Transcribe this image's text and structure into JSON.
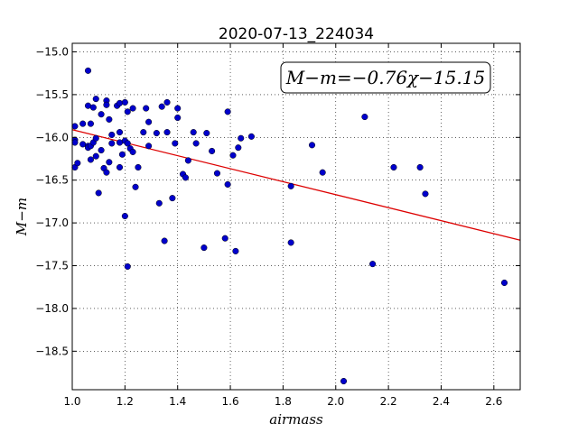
{
  "chart_data": {
    "type": "scatter",
    "title": "2020-07-13_224034",
    "xlabel": "airmass",
    "ylabel": "M−m",
    "xlim": [
      1.0,
      2.7
    ],
    "ylim": [
      -18.95,
      -14.9
    ],
    "y_inverted": true,
    "grid": true,
    "xticks": [
      "1.0",
      "1.2",
      "1.4",
      "1.6",
      "1.8",
      "2.0",
      "2.2",
      "2.4",
      "2.6"
    ],
    "yticks": [
      "−15.0",
      "−15.5",
      "−16.0",
      "−16.5",
      "−17.0",
      "−17.5",
      "−18.0",
      "−18.5"
    ],
    "point_color": "#0000cc",
    "fit_color": "#dd0000",
    "fit": {
      "slope": -0.76,
      "intercept": -15.15
    },
    "annotation": "M−m=−0.76χ−15.15",
    "points": [
      [
        1.01,
        -15.87
      ],
      [
        1.01,
        -16.03
      ],
      [
        1.01,
        -16.06
      ],
      [
        1.01,
        -16.35
      ],
      [
        1.02,
        -16.3
      ],
      [
        1.04,
        -15.84
      ],
      [
        1.04,
        -16.08
      ],
      [
        1.06,
        -15.22
      ],
      [
        1.06,
        -16.1
      ],
      [
        1.06,
        -16.12
      ],
      [
        1.06,
        -15.63
      ],
      [
        1.07,
        -15.84
      ],
      [
        1.07,
        -16.1
      ],
      [
        1.07,
        -16.26
      ],
      [
        1.08,
        -15.65
      ],
      [
        1.08,
        -16.06
      ],
      [
        1.09,
        -15.55
      ],
      [
        1.09,
        -16.22
      ],
      [
        1.09,
        -16.01
      ],
      [
        1.1,
        -16.65
      ],
      [
        1.11,
        -15.73
      ],
      [
        1.11,
        -16.15
      ],
      [
        1.12,
        -16.36
      ],
      [
        1.13,
        -16.41
      ],
      [
        1.13,
        -15.57
      ],
      [
        1.13,
        -15.62
      ],
      [
        1.14,
        -16.29
      ],
      [
        1.14,
        -15.79
      ],
      [
        1.15,
        -16.07
      ],
      [
        1.15,
        -15.97
      ],
      [
        1.17,
        -15.63
      ],
      [
        1.18,
        -15.6
      ],
      [
        1.18,
        -16.06
      ],
      [
        1.18,
        -16.35
      ],
      [
        1.18,
        -15.94
      ],
      [
        1.19,
        -16.2
      ],
      [
        1.2,
        -16.04
      ],
      [
        1.2,
        -15.59
      ],
      [
        1.2,
        -16.92
      ],
      [
        1.21,
        -17.51
      ],
      [
        1.21,
        -15.7
      ],
      [
        1.21,
        -16.07
      ],
      [
        1.22,
        -16.13
      ],
      [
        1.23,
        -16.17
      ],
      [
        1.23,
        -15.66
      ],
      [
        1.24,
        -16.58
      ],
      [
        1.25,
        -16.35
      ],
      [
        1.27,
        -15.94
      ],
      [
        1.28,
        -15.66
      ],
      [
        1.29,
        -16.1
      ],
      [
        1.29,
        -15.82
      ],
      [
        1.32,
        -15.95
      ],
      [
        1.33,
        -16.77
      ],
      [
        1.34,
        -15.64
      ],
      [
        1.35,
        -17.21
      ],
      [
        1.36,
        -15.59
      ],
      [
        1.36,
        -15.94
      ],
      [
        1.38,
        -16.71
      ],
      [
        1.39,
        -16.07
      ],
      [
        1.4,
        -15.77
      ],
      [
        1.4,
        -15.66
      ],
      [
        1.42,
        -16.43
      ],
      [
        1.43,
        -16.47
      ],
      [
        1.44,
        -16.27
      ],
      [
        1.46,
        -15.94
      ],
      [
        1.47,
        -16.07
      ],
      [
        1.5,
        -17.29
      ],
      [
        1.51,
        -15.95
      ],
      [
        1.53,
        -16.16
      ],
      [
        1.55,
        -16.42
      ],
      [
        1.58,
        -17.18
      ],
      [
        1.59,
        -16.55
      ],
      [
        1.59,
        -15.7
      ],
      [
        1.61,
        -16.21
      ],
      [
        1.62,
        -17.33
      ],
      [
        1.63,
        -16.12
      ],
      [
        1.64,
        -16.01
      ],
      [
        1.68,
        -15.99
      ],
      [
        1.83,
        -16.57
      ],
      [
        1.83,
        -17.23
      ],
      [
        1.91,
        -16.09
      ],
      [
        1.95,
        -16.41
      ],
      [
        2.03,
        -18.85
      ],
      [
        2.11,
        -15.76
      ],
      [
        2.14,
        -17.48
      ],
      [
        2.22,
        -16.35
      ],
      [
        2.32,
        -16.35
      ],
      [
        2.34,
        -16.66
      ],
      [
        2.64,
        -17.7
      ]
    ]
  }
}
